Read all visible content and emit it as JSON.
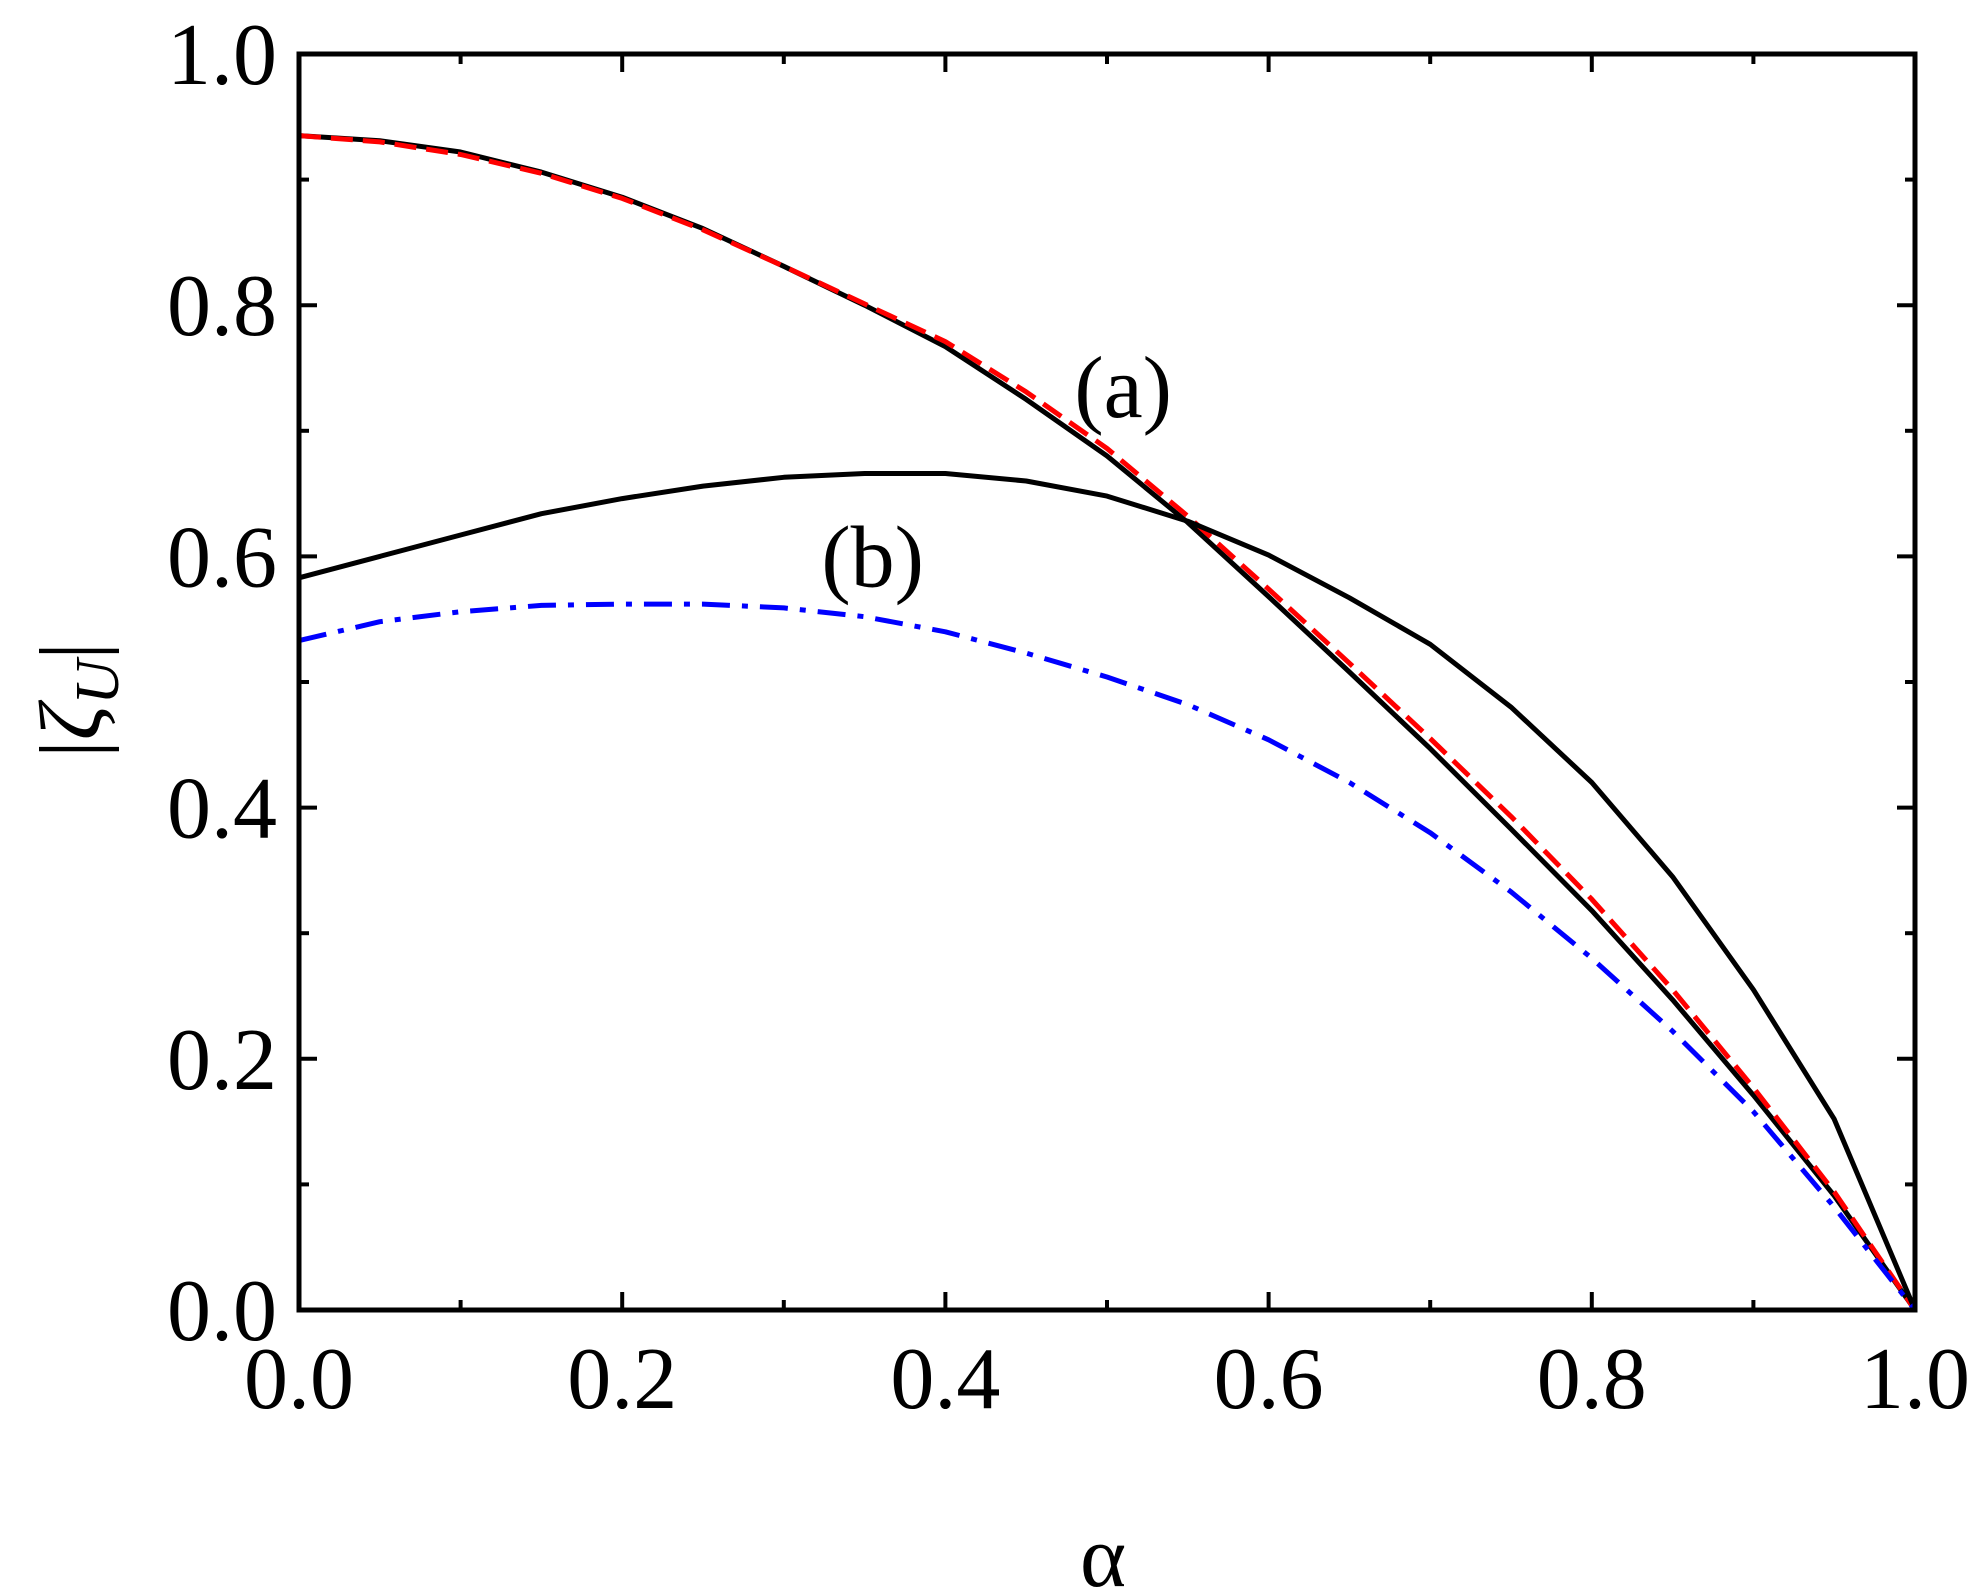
{
  "chart_data": {
    "type": "line",
    "title": "",
    "xlabel": "α",
    "ylabel": "|ζ_U|",
    "ylabel_parts": {
      "bar_left": "|",
      "symbol": "ζ",
      "subscript": "U",
      "bar_right": "|"
    },
    "xlim": [
      0.0,
      1.0
    ],
    "ylim": [
      0.0,
      1.0
    ],
    "x_ticks": [
      0.0,
      0.2,
      0.4,
      0.6,
      0.8,
      1.0
    ],
    "x_tick_labels": [
      "0.0",
      "0.2",
      "0.4",
      "0.6",
      "0.8",
      "1.0"
    ],
    "y_ticks": [
      0.0,
      0.2,
      0.4,
      0.6,
      0.8,
      1.0
    ],
    "y_tick_labels": [
      "0.0",
      "0.2",
      "0.4",
      "0.6",
      "0.8",
      "1.0"
    ],
    "x_minor_ticks": [
      0.1,
      0.3,
      0.5,
      0.7,
      0.9
    ],
    "y_minor_ticks": [
      0.1,
      0.3,
      0.5,
      0.7,
      0.9
    ],
    "grid": false,
    "legend": "none",
    "annotations": [
      {
        "text": "(a)",
        "x": 0.51,
        "y": 0.735
      },
      {
        "text": "(b)",
        "x": 0.355,
        "y": 0.6
      }
    ],
    "series": [
      {
        "color": "#000000",
        "dash": "solid",
        "x": [
          0.0,
          0.05,
          0.1,
          0.15,
          0.2,
          0.25,
          0.3,
          0.35,
          0.4,
          0.45,
          0.5,
          0.55,
          0.6,
          0.65,
          0.7,
          0.75,
          0.8,
          0.85,
          0.9,
          0.95,
          1.0
        ],
        "y": [
          0.935,
          0.931,
          0.922,
          0.906,
          0.886,
          0.861,
          0.831,
          0.8,
          0.767,
          0.725,
          0.68,
          0.627,
          0.568,
          0.508,
          0.447,
          0.383,
          0.318,
          0.247,
          0.171,
          0.091,
          0.0
        ]
      },
      {
        "color": "#ff0000",
        "dash": "dashed",
        "x": [
          0.0,
          0.05,
          0.1,
          0.15,
          0.2,
          0.25,
          0.3,
          0.35,
          0.4,
          0.45,
          0.5,
          0.55,
          0.6,
          0.65,
          0.7,
          0.75,
          0.8,
          0.85,
          0.9,
          0.95,
          1.0
        ],
        "y": [
          0.935,
          0.93,
          0.92,
          0.905,
          0.885,
          0.86,
          0.831,
          0.801,
          0.771,
          0.731,
          0.686,
          0.632,
          0.574,
          0.515,
          0.455,
          0.393,
          0.327,
          0.255,
          0.177,
          0.094,
          0.0
        ]
      },
      {
        "color": "#000000",
        "dash": "solid",
        "x": [
          0.0,
          0.05,
          0.1,
          0.15,
          0.2,
          0.25,
          0.3,
          0.35,
          0.4,
          0.45,
          0.5,
          0.55,
          0.6,
          0.65,
          0.7,
          0.75,
          0.8,
          0.85,
          0.9,
          0.95,
          1.0
        ],
        "y": [
          0.583,
          0.6,
          0.617,
          0.634,
          0.646,
          0.656,
          0.663,
          0.666,
          0.666,
          0.66,
          0.648,
          0.628,
          0.601,
          0.567,
          0.53,
          0.48,
          0.42,
          0.345,
          0.255,
          0.152,
          0.0
        ]
      },
      {
        "color": "#0000ff",
        "dash": "dashdot",
        "x": [
          0.0,
          0.05,
          0.1,
          0.15,
          0.2,
          0.25,
          0.3,
          0.35,
          0.4,
          0.45,
          0.5,
          0.55,
          0.6,
          0.65,
          0.7,
          0.75,
          0.8,
          0.85,
          0.9,
          0.95,
          1.0
        ],
        "y": [
          0.533,
          0.548,
          0.556,
          0.561,
          0.562,
          0.562,
          0.559,
          0.552,
          0.54,
          0.523,
          0.504,
          0.482,
          0.454,
          0.42,
          0.38,
          0.333,
          0.28,
          0.222,
          0.158,
          0.082,
          0.0
        ]
      }
    ]
  }
}
